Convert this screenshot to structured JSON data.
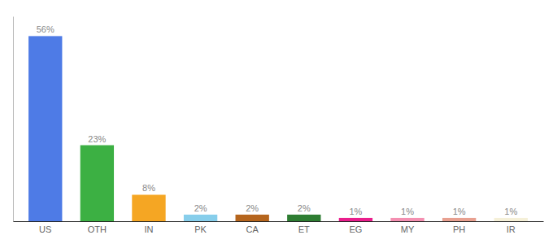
{
  "chart_data": {
    "type": "bar",
    "categories": [
      "US",
      "OTH",
      "IN",
      "PK",
      "CA",
      "ET",
      "EG",
      "MY",
      "PH",
      "IR"
    ],
    "values": [
      56,
      23,
      8,
      2,
      2,
      2,
      1,
      1,
      1,
      1
    ],
    "value_labels": [
      "56%",
      "23%",
      "8%",
      "2%",
      "2%",
      "2%",
      "1%",
      "1%",
      "1%",
      "1%"
    ],
    "colors": [
      "#4e7be6",
      "#3cb043",
      "#f5a623",
      "#87ceeb",
      "#b5651d",
      "#2e7d32",
      "#e91e8c",
      "#f48fb1",
      "#e8a090",
      "#f5f0d8"
    ],
    "ylim": [
      0,
      62
    ],
    "data_labels": true,
    "tick_labels": "x",
    "grid": false
  }
}
